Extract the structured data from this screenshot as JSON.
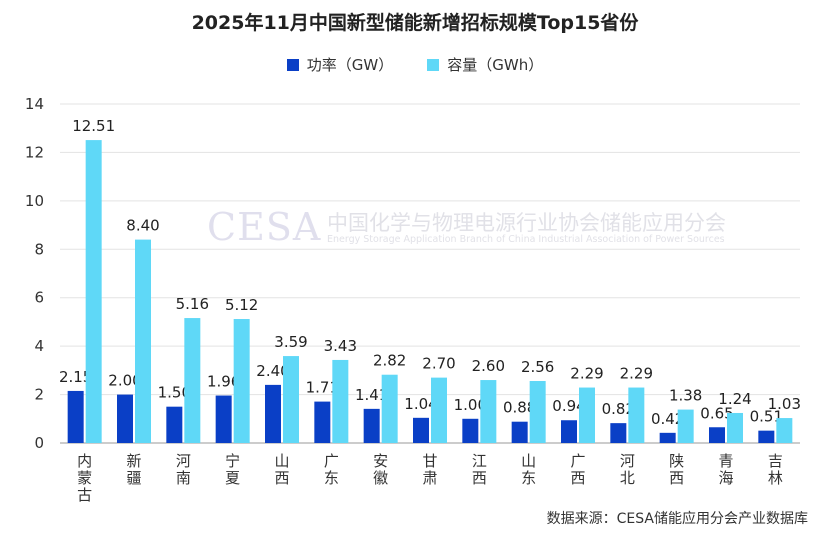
{
  "chart_data": {
    "type": "bar",
    "title": "2025年11月中国新型储能新增招标规模Top15省份",
    "categories": [
      "内蒙古",
      "新疆",
      "河南",
      "宁夏",
      "山西",
      "广东",
      "安徽",
      "甘肃",
      "江西",
      "山东",
      "广西",
      "河北",
      "陕西",
      "青海",
      "吉林"
    ],
    "series": [
      {
        "name": "功率（GW）",
        "color": "#0a3fc6",
        "values": [
          2.15,
          2.0,
          1.5,
          1.96,
          2.4,
          1.71,
          1.41,
          1.04,
          1.0,
          0.88,
          0.94,
          0.82,
          0.42,
          0.65,
          0.51
        ]
      },
      {
        "name": "容量（GWh）",
        "color": "#5fd8f7",
        "values": [
          12.51,
          8.4,
          5.16,
          5.12,
          3.59,
          3.43,
          2.82,
          2.7,
          2.6,
          2.56,
          2.29,
          2.29,
          1.38,
          1.24,
          1.03
        ]
      }
    ],
    "ylim": [
      0,
      14
    ],
    "yticks": [
      0,
      2,
      4,
      6,
      8,
      10,
      12,
      14
    ],
    "grid": true,
    "legend_position": "top-center"
  },
  "watermark": {
    "logo": "CESA",
    "cn": "中国化学与物理电源行业协会储能应用分会",
    "en": "Energy Storage Application Branch of China Industrial Association of Power Sources"
  },
  "source": "数据来源：CESA储能应用分会产业数据库"
}
